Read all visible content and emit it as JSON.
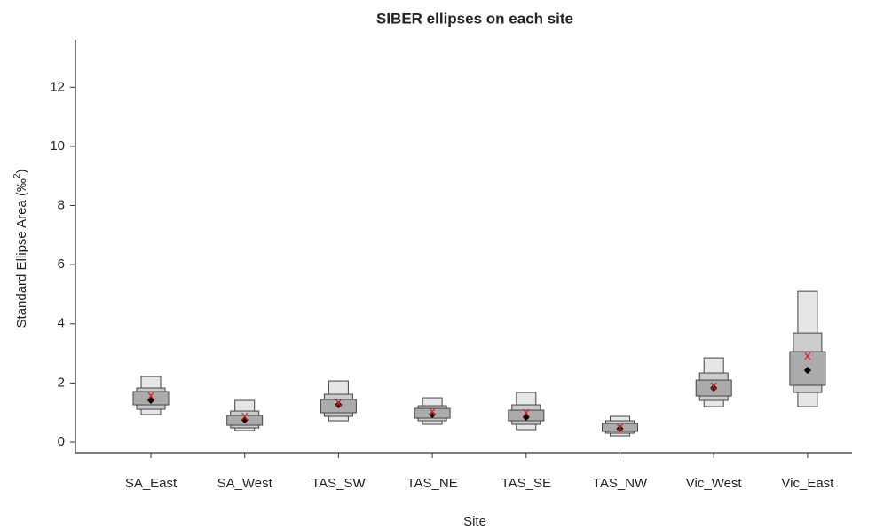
{
  "chart_data": {
    "type": "density-boxes",
    "title": "SIBER ellipses on each site",
    "xlabel": "Site",
    "ylabel": {
      "text": "Standard Ellipse Area (‰",
      "sup": "2",
      "tail": ")"
    },
    "categories": [
      "SA_East",
      "SA_West",
      "TAS_SW",
      "TAS_NE",
      "TAS_SE",
      "TAS_NW",
      "Vic_West",
      "Vic_East"
    ],
    "boxes": [
      {
        "color": "#e6e6e6",
        "low": [
          0.93,
          0.39,
          0.72,
          0.6,
          0.42,
          0.21,
          1.2,
          1.2
        ],
        "high": [
          2.22,
          1.41,
          2.07,
          1.5,
          1.68,
          0.87,
          2.85,
          5.1
        ]
      },
      {
        "color": "#cccccc",
        "low": [
          1.11,
          0.48,
          0.87,
          0.72,
          0.6,
          0.3,
          1.41,
          1.68
        ],
        "high": [
          1.83,
          1.05,
          1.62,
          1.23,
          1.26,
          0.72,
          2.34,
          3.69
        ]
      },
      {
        "color": "#ababab",
        "low": [
          1.26,
          0.57,
          0.99,
          0.81,
          0.72,
          0.36,
          1.56,
          1.92
        ],
        "high": [
          1.71,
          0.9,
          1.44,
          1.14,
          1.08,
          0.63,
          2.1,
          3.06
        ]
      }
    ],
    "mode": {
      "color": "#000000",
      "values": [
        1.41,
        0.75,
        1.26,
        0.93,
        0.84,
        0.45,
        1.83,
        2.43
      ]
    },
    "sea_c": {
      "color": "#e02020",
      "values": [
        1.56,
        0.87,
        1.32,
        1.02,
        0.99,
        0.48,
        1.89,
        2.91
      ]
    },
    "ylim": [
      -0.36,
      13.6
    ],
    "yticks": [
      0,
      2,
      4,
      6,
      8,
      10,
      12
    ]
  }
}
